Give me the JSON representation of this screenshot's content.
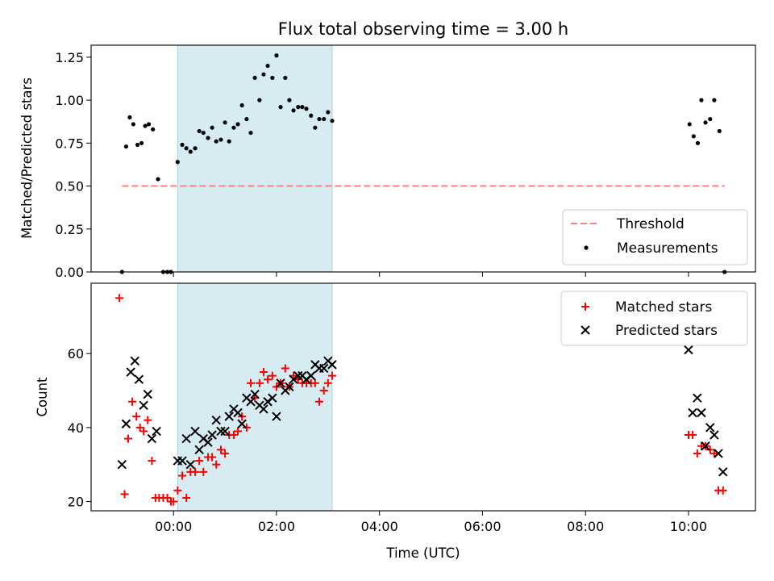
{
  "figure_title": "Flux total observing time = 3.00 h",
  "chart_data": [
    {
      "type": "scatter",
      "title": "",
      "xlabel": "",
      "ylabel": "Matched/Predicted stars",
      "xlim_hours": [
        -1.6,
        11.3
      ],
      "ylim": [
        0.0,
        1.32
      ],
      "yticks": [
        0.0,
        0.25,
        0.5,
        0.75,
        1.0,
        1.25
      ],
      "ytick_labels": [
        "0.00",
        "0.25",
        "0.50",
        "0.75",
        "1.00",
        "1.25"
      ],
      "highlight_span_hours": [
        0.08,
        3.08
      ],
      "legend_position": "lower-right",
      "threshold": {
        "name": "Threshold",
        "value": 0.5,
        "x_range_hours": [
          -1.0,
          10.7
        ],
        "color": "#ff7f7f",
        "style": "dashed"
      },
      "series": [
        {
          "name": "Measurements",
          "color": "#000000",
          "marker": "dot",
          "x_hours": [
            -1.0,
            -0.92,
            -0.85,
            -0.78,
            -0.7,
            -0.62,
            -0.55,
            -0.48,
            -0.4,
            -0.3,
            -0.2,
            -0.12,
            -0.05,
            0.08,
            0.17,
            0.25,
            0.33,
            0.42,
            0.5,
            0.58,
            0.67,
            0.75,
            0.83,
            0.92,
            1.0,
            1.08,
            1.17,
            1.25,
            1.33,
            1.42,
            1.5,
            1.58,
            1.67,
            1.75,
            1.83,
            1.92,
            2.0,
            2.08,
            2.17,
            2.25,
            2.33,
            2.42,
            2.5,
            2.58,
            2.67,
            2.75,
            2.83,
            2.92,
            3.0,
            3.08,
            10.02,
            10.1,
            10.18,
            10.25,
            10.33,
            10.42,
            10.5,
            10.6,
            10.7
          ],
          "y": [
            0.0,
            0.73,
            0.9,
            0.86,
            0.74,
            0.75,
            0.85,
            0.86,
            0.83,
            0.54,
            0.0,
            0.0,
            0.0,
            0.64,
            0.74,
            0.72,
            0.7,
            0.72,
            0.82,
            0.81,
            0.78,
            0.84,
            0.76,
            0.77,
            0.87,
            0.76,
            0.84,
            0.86,
            0.97,
            0.89,
            0.81,
            1.13,
            1.0,
            1.15,
            1.2,
            1.13,
            1.26,
            0.96,
            1.13,
            1.0,
            0.94,
            0.96,
            0.96,
            0.95,
            0.91,
            0.84,
            0.89,
            0.89,
            0.93,
            0.88,
            0.86,
            0.79,
            0.75,
            1.0,
            0.87,
            0.89,
            1.0,
            0.82,
            0.0
          ]
        }
      ]
    },
    {
      "type": "scatter",
      "title": "",
      "xlabel": "Time (UTC)",
      "ylabel": "Count",
      "xlim_hours": [
        -1.6,
        11.3
      ],
      "ylim": [
        17.5,
        79
      ],
      "yticks": [
        20,
        40,
        60
      ],
      "ytick_labels": [
        "20",
        "40",
        "60"
      ],
      "xticks_hours": [
        0,
        2,
        4,
        6,
        8,
        10
      ],
      "xtick_labels": [
        "00:00",
        "02:00",
        "04:00",
        "06:00",
        "08:00",
        "10:00"
      ],
      "highlight_span_hours": [
        0.08,
        3.08
      ],
      "legend_position": "upper-right",
      "series": [
        {
          "name": "Matched stars",
          "color": "#ff0000",
          "marker": "plus",
          "x_hours": [
            -1.05,
            -0.95,
            -0.88,
            -0.8,
            -0.72,
            -0.65,
            -0.58,
            -0.5,
            -0.42,
            -0.35,
            -0.28,
            -0.2,
            -0.12,
            -0.05,
            0.0,
            0.08,
            0.17,
            0.25,
            0.33,
            0.42,
            0.5,
            0.58,
            0.67,
            0.75,
            0.83,
            0.92,
            1.0,
            1.08,
            1.17,
            1.25,
            1.33,
            1.42,
            1.5,
            1.58,
            1.67,
            1.75,
            1.83,
            1.92,
            2.0,
            2.08,
            2.17,
            2.25,
            2.33,
            2.42,
            2.5,
            2.58,
            2.67,
            2.75,
            2.83,
            2.92,
            3.0,
            3.08,
            10.0,
            10.08,
            10.17,
            10.25,
            10.33,
            10.42,
            10.5,
            10.58,
            10.67
          ],
          "y": [
            75,
            22,
            37,
            47,
            43,
            40,
            39,
            42,
            31,
            21,
            21,
            21,
            21,
            20,
            20,
            23,
            27,
            21,
            28,
            28,
            31,
            28,
            32,
            32,
            30,
            34,
            33,
            38,
            38,
            39,
            43,
            40,
            52,
            48,
            52,
            55,
            53,
            54,
            51,
            52,
            56,
            51,
            54,
            53,
            52,
            52,
            52,
            52,
            47,
            50,
            52,
            54,
            38,
            38,
            33,
            35,
            35,
            34,
            33,
            23,
            23
          ]
        },
        {
          "name": "Predicted stars",
          "color": "#000000",
          "marker": "x",
          "x_hours": [
            -1.0,
            -0.92,
            -0.83,
            -0.75,
            -0.67,
            -0.58,
            -0.5,
            -0.42,
            -0.33,
            0.08,
            0.17,
            0.25,
            0.33,
            0.42,
            0.5,
            0.58,
            0.67,
            0.75,
            0.83,
            0.92,
            1.0,
            1.08,
            1.17,
            1.25,
            1.33,
            1.42,
            1.5,
            1.58,
            1.67,
            1.75,
            1.83,
            1.92,
            2.0,
            2.08,
            2.17,
            2.25,
            2.33,
            2.42,
            2.5,
            2.58,
            2.67,
            2.75,
            2.83,
            2.92,
            3.0,
            3.08,
            10.0,
            10.08,
            10.17,
            10.25,
            10.33,
            10.42,
            10.5,
            10.58,
            10.67
          ],
          "y": [
            30,
            41,
            55,
            58,
            53,
            46,
            49,
            37,
            39,
            31,
            31,
            37,
            30,
            39,
            34,
            37,
            36,
            38,
            42,
            39,
            39,
            43,
            45,
            44,
            41,
            48,
            47,
            49,
            46,
            45,
            47,
            48,
            43,
            52,
            50,
            51,
            53,
            54,
            54,
            53,
            54,
            57,
            56,
            56,
            58,
            57,
            61,
            44,
            48,
            44,
            35,
            40,
            38,
            33,
            28
          ]
        }
      ]
    }
  ]
}
